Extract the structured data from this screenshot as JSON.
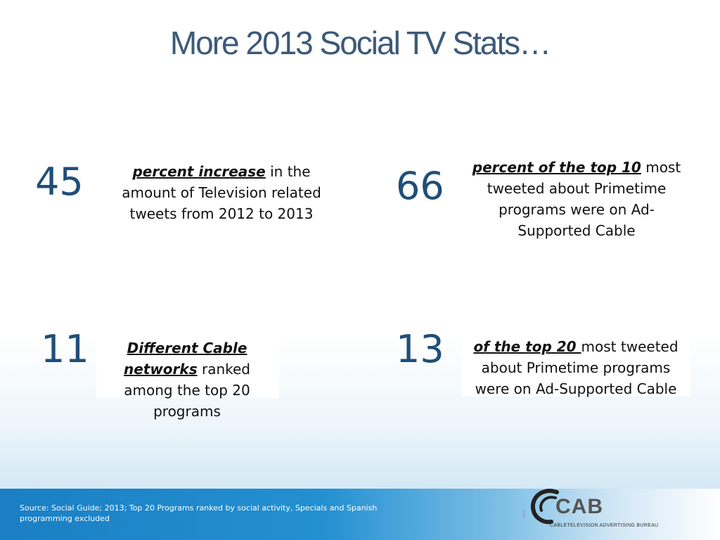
{
  "title": "More 2013 Social TV Stats…",
  "stats": [
    {
      "number": "45",
      "emphasis": "percent increase",
      "rest": " in the amount of Television related tweets from 2012 to 2013"
    },
    {
      "number": "66",
      "emphasis": "percent of the top 10",
      "rest": " most tweeted about Primetime programs were on Ad-Supported Cable"
    },
    {
      "number": "11",
      "emphasis": "Different Cable networks",
      "rest": " ranked among the top 20 programs"
    },
    {
      "number": "13",
      "emphasis": "of the top 20 ",
      "rest": "most tweeted about Primetime programs were on Ad-Supported Cable"
    }
  ],
  "footer": {
    "source": "Source: Social Guide; 2013; Top 20 Programs ranked by social activity, Specials and Spanish programming excluded",
    "page_number": "1"
  },
  "logo": {
    "name": "CAB",
    "subtitle": "CABLETELEVISION ADVERTISING BUREAU"
  },
  "colors": {
    "title": "#3c5a78",
    "numbers": "#1f4e79",
    "footer_band": "#1a7fc4"
  }
}
